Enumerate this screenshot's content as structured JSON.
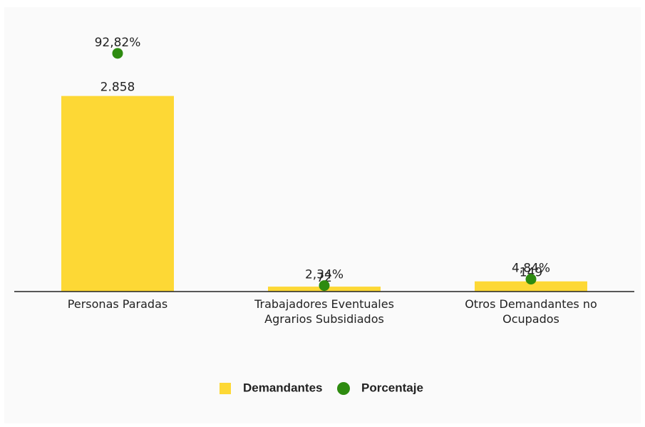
{
  "chart_data": {
    "type": "bar",
    "categories": [
      "Personas Paradas",
      "Trabajadores Eventuales Agrarios Subsidiados",
      "Otros Demandantes no Ocupados"
    ],
    "series": [
      {
        "name": "Demandantes",
        "type": "bar",
        "color": "#fdd835",
        "values": [
          2858,
          72,
          149
        ],
        "value_labels": [
          "2.858",
          "72",
          "149"
        ]
      },
      {
        "name": "Porcentaje",
        "type": "scatter",
        "color": "#2e8b10",
        "axis": "y2",
        "values": [
          92.82,
          2.34,
          4.84
        ],
        "value_labels": [
          "92,82%",
          "2,34%",
          "4,84%"
        ]
      }
    ],
    "ylim": [
      0,
      3000
    ],
    "y2lim": [
      0,
      100
    ],
    "legend": "bottom"
  }
}
